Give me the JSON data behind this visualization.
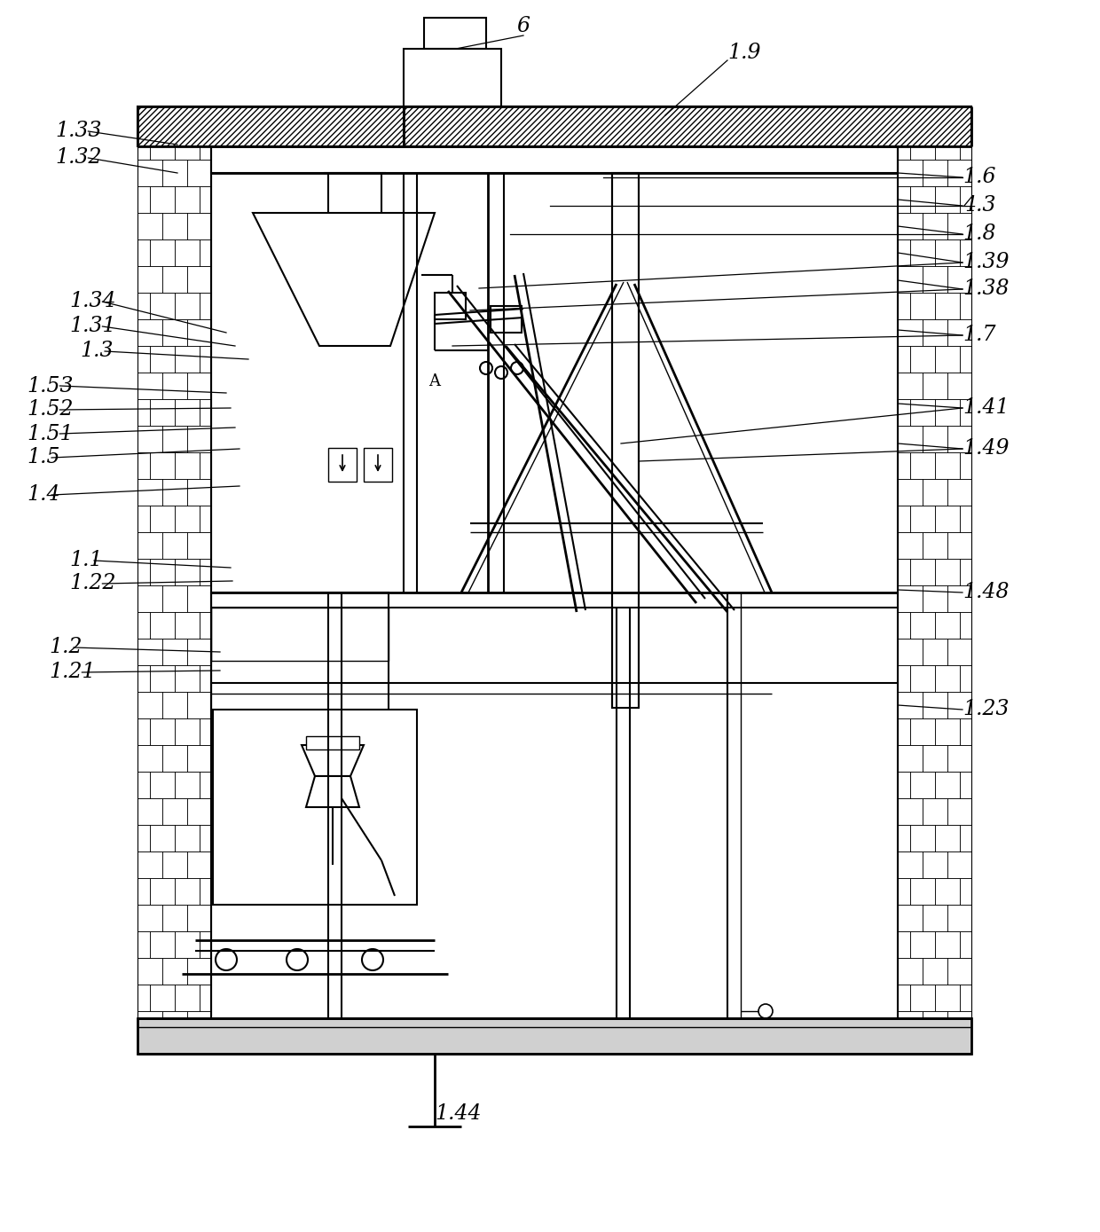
{
  "figsize": [
    12.4,
    13.89
  ],
  "dpi": 100,
  "bg_color": "#ffffff",
  "lc": "#000000",
  "labels_left": [
    [
      "1.33",
      62,
      148
    ],
    [
      "1.32",
      62,
      178
    ],
    [
      "1.34",
      78,
      340
    ],
    [
      "1.31",
      78,
      368
    ],
    [
      "1.3",
      90,
      396
    ],
    [
      "1.53",
      30,
      435
    ],
    [
      "1.52",
      30,
      462
    ],
    [
      "1.51",
      30,
      489
    ],
    [
      "1.5",
      30,
      516
    ],
    [
      "1.4",
      30,
      558
    ],
    [
      "1.1",
      78,
      632
    ],
    [
      "1.22",
      78,
      658
    ],
    [
      "1.2",
      55,
      730
    ],
    [
      "1.21",
      55,
      758
    ]
  ],
  "labels_right": [
    [
      "1.6",
      1085,
      200
    ],
    [
      "4.3",
      1085,
      232
    ],
    [
      "1.8",
      1085,
      264
    ],
    [
      "1.39",
      1085,
      296
    ],
    [
      "1.38",
      1085,
      326
    ],
    [
      "1.7",
      1085,
      378
    ],
    [
      "1.41",
      1085,
      460
    ],
    [
      "1.49",
      1085,
      506
    ],
    [
      "1.48",
      1085,
      668
    ],
    [
      "1.23",
      1085,
      800
    ]
  ],
  "label_6": [
    590,
    30
  ],
  "label_19": [
    820,
    60
  ],
  "label_144": [
    490,
    1255
  ]
}
